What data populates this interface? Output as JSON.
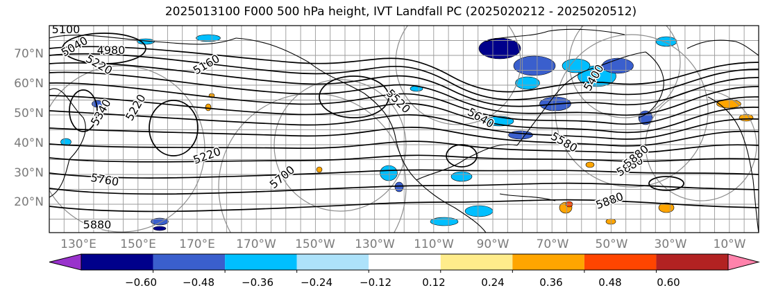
{
  "title": "2025013100 F000 500 hPa height, IVT Landfall PC (2025020212 - 2025020512)",
  "latitude_labels": [
    "70°N",
    "60°N",
    "50°N",
    "40°N",
    "30°N",
    "20°N"
  ],
  "longitude_labels": [
    "130°E",
    "150°E",
    "170°E",
    "170°W",
    "150°W",
    "130°W",
    "110°W",
    "90°W",
    "70°W",
    "50°W",
    "30°W",
    "10°W"
  ],
  "contour_labels": [
    "5100",
    "5040",
    "4980",
    "5220",
    "5160",
    "5340",
    "5220",
    "5520",
    "5640",
    "5220",
    "5760",
    "5880",
    "5700",
    "5880",
    "5880",
    "5880",
    "5580",
    "5400"
  ],
  "colorbar": {
    "tick_labels": [
      "−0.60",
      "−0.48",
      "−0.36",
      "−0.24",
      "−0.12",
      "0.12",
      "0.24",
      "0.36",
      "0.48",
      "0.60"
    ],
    "colors": [
      "#9932cc",
      "#00008b",
      "#3a5fcd",
      "#00bfff",
      "#ade2fa",
      "#ffffff",
      "#ffec8b",
      "#ffa500",
      "#ff4500",
      "#b22222",
      "#ff82ab"
    ]
  },
  "colors": {
    "frame": "#000000",
    "grid": "#999999",
    "coast": "#000000",
    "contour": "#000000",
    "circle": "#8c8c8c",
    "tick_text": "#7a7a7a"
  }
}
